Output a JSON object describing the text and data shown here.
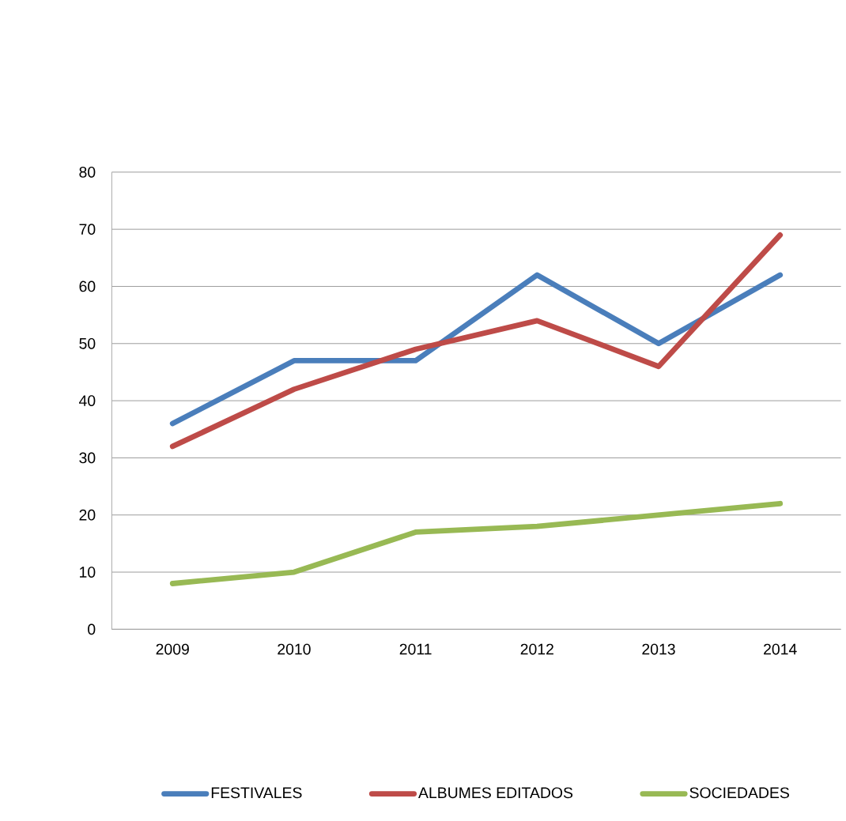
{
  "chart_data": {
    "type": "line",
    "categories": [
      "2009",
      "2010",
      "2011",
      "2012",
      "2013",
      "2014"
    ],
    "series": [
      {
        "name": "FESTIVALES",
        "color": "#4a7ebb",
        "values": [
          36,
          47,
          47,
          62,
          50,
          62
        ]
      },
      {
        "name": "ALBUMES EDITADOS",
        "color": "#be4b48",
        "values": [
          32,
          42,
          49,
          54,
          46,
          69
        ]
      },
      {
        "name": "SOCIEDADES",
        "color": "#98b954",
        "values": [
          8,
          10,
          17,
          18,
          20,
          22
        ]
      }
    ],
    "ylim": [
      0,
      80
    ],
    "yticks": [
      0,
      10,
      20,
      30,
      40,
      50,
      60,
      70,
      80
    ],
    "grid": "y",
    "legend": "bottom",
    "marker": "none",
    "line_style": "solid"
  }
}
